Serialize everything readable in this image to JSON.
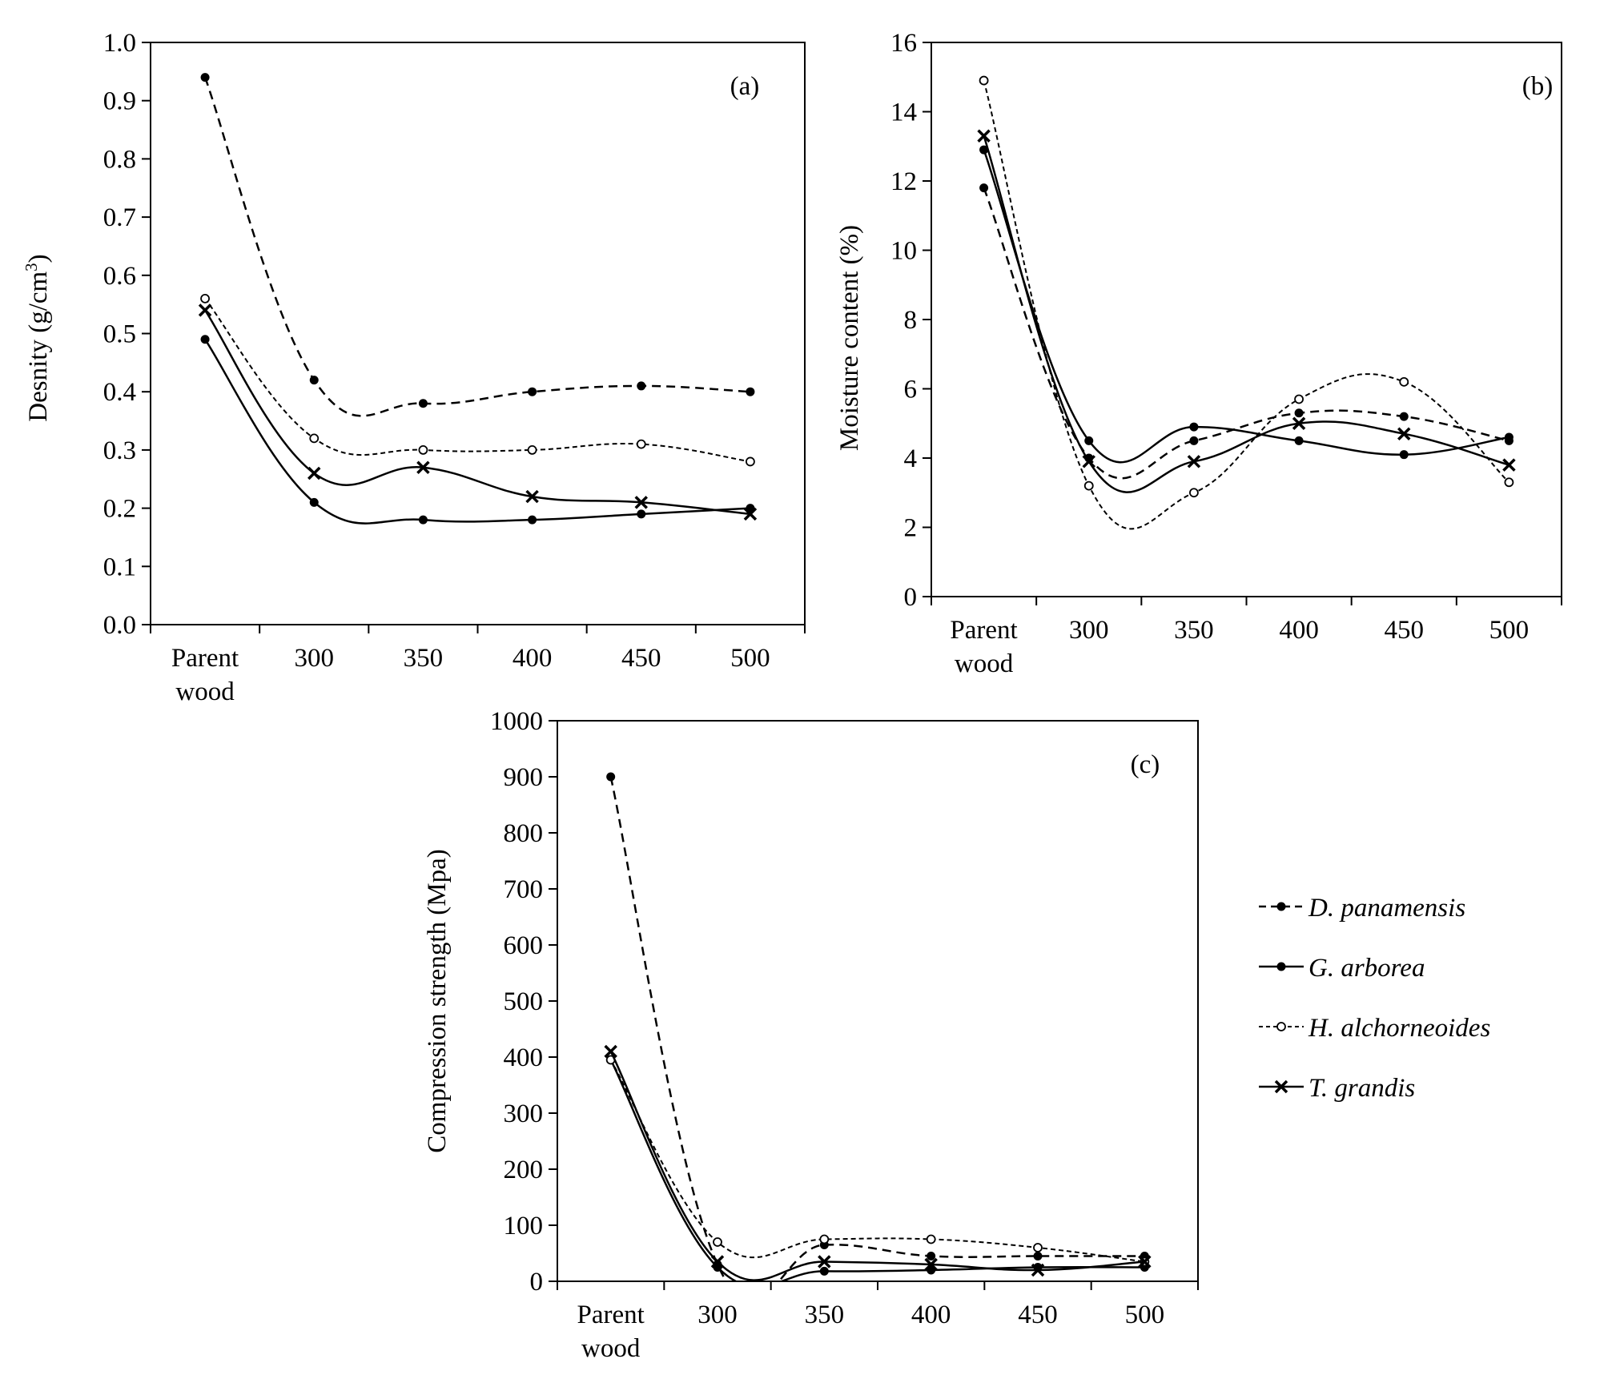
{
  "chart_data": [
    {
      "type": "line",
      "panel_label": "(a)",
      "title": "",
      "xlabel": "",
      "ylabel": "Desnity (g/cm³)",
      "ylabel_main": "Desnity (g/cm",
      "ylabel_sup": "3",
      "ylabel_close": ")",
      "categories": [
        [
          "Parent",
          "wood"
        ],
        [
          "300"
        ],
        [
          "350"
        ],
        [
          "400"
        ],
        [
          "450"
        ],
        [
          "500"
        ]
      ],
      "ylim": [
        0,
        1.0
      ],
      "yticks": [
        "0.0",
        "0.1",
        "0.2",
        "0.3",
        "0.4",
        "0.5",
        "0.6",
        "0.7",
        "0.8",
        "0.9",
        "1.0"
      ],
      "grid": false,
      "series": [
        {
          "name": "D. panamensis",
          "values": [
            0.94,
            0.42,
            0.38,
            0.4,
            0.41,
            0.4
          ]
        },
        {
          "name": "G. arborea",
          "values": [
            0.49,
            0.21,
            0.18,
            0.18,
            0.19,
            0.2
          ]
        },
        {
          "name": "H. alchorneoides",
          "values": [
            0.56,
            0.32,
            0.3,
            0.3,
            0.31,
            0.28
          ]
        },
        {
          "name": "T. grandis",
          "values": [
            0.54,
            0.26,
            0.27,
            0.22,
            0.21,
            0.19
          ]
        }
      ]
    },
    {
      "type": "line",
      "panel_label": "(b)",
      "title": "",
      "xlabel": "",
      "ylabel": "Moisture content (%)",
      "categories": [
        [
          "Parent",
          "wood"
        ],
        [
          "300"
        ],
        [
          "350"
        ],
        [
          "400"
        ],
        [
          "450"
        ],
        [
          "500"
        ]
      ],
      "ylim": [
        0,
        16
      ],
      "yticks": [
        "0",
        "2",
        "4",
        "6",
        "8",
        "10",
        "12",
        "14",
        "16"
      ],
      "grid": false,
      "series": [
        {
          "name": "D. panamensis",
          "values": [
            11.8,
            4.0,
            4.5,
            5.3,
            5.2,
            4.5
          ]
        },
        {
          "name": "G. arborea",
          "values": [
            12.9,
            4.5,
            4.9,
            4.5,
            4.1,
            4.6
          ]
        },
        {
          "name": "H. alchorneoides",
          "values": [
            14.9,
            3.2,
            3.0,
            5.7,
            6.2,
            3.3
          ]
        },
        {
          "name": "T. grandis",
          "values": [
            13.3,
            3.9,
            3.9,
            5.0,
            4.7,
            3.8
          ]
        }
      ]
    },
    {
      "type": "line",
      "panel_label": "(c)",
      "title": "",
      "xlabel": "",
      "ylabel": "Compression strength (Mpa)",
      "categories": [
        [
          "Parent",
          "wood"
        ],
        [
          "300"
        ],
        [
          "350"
        ],
        [
          "400"
        ],
        [
          "450"
        ],
        [
          "500"
        ]
      ],
      "ylim": [
        0,
        1000
      ],
      "yticks": [
        "0",
        "100",
        "200",
        "300",
        "400",
        "500",
        "600",
        "700",
        "800",
        "900",
        "1000"
      ],
      "grid": false,
      "legend": "right",
      "series": [
        {
          "name": "D. panamensis",
          "values": [
            900,
            30,
            65,
            45,
            45,
            45
          ]
        },
        {
          "name": "G. arborea",
          "values": [
            395,
            25,
            18,
            20,
            25,
            25
          ]
        },
        {
          "name": "H. alchorneoides",
          "values": [
            395,
            70,
            75,
            75,
            60,
            35
          ]
        },
        {
          "name": "T. grandis",
          "values": [
            410,
            35,
            35,
            30,
            20,
            35
          ]
        }
      ]
    }
  ],
  "legend": {
    "items": [
      {
        "name": "D. panamensis",
        "style": "dashed-dot"
      },
      {
        "name": "G. arborea",
        "style": "solid-dot"
      },
      {
        "name": "H. alchorneoides",
        "style": "dotted-ring"
      },
      {
        "name": "T. grandis",
        "style": "solid-x"
      }
    ]
  },
  "colors": {
    "ink": "#000000",
    "background": "#ffffff"
  }
}
